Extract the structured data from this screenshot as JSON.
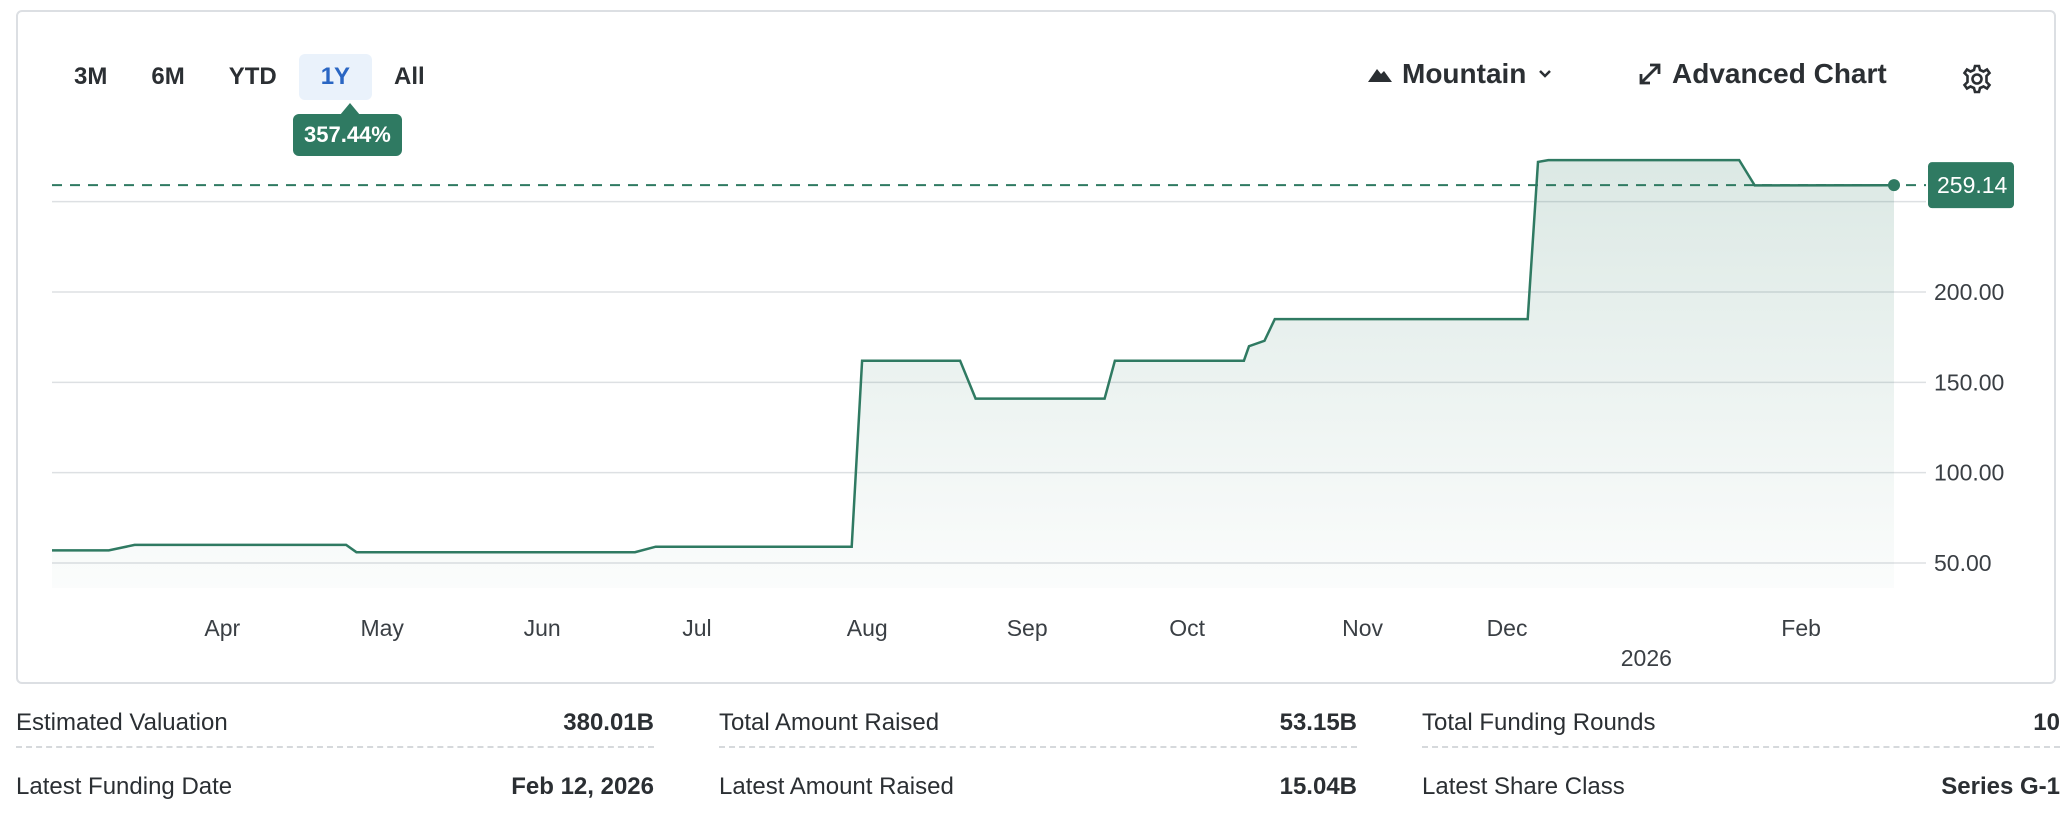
{
  "range_buttons": [
    "3M",
    "6M",
    "YTD",
    "1Y",
    "All"
  ],
  "active_range": "1Y",
  "change_tooltip": "357.44%",
  "controls": {
    "chart_style_label": "Mountain",
    "advanced_chart_label": "Advanced Chart"
  },
  "colors": {
    "line": "#2f7a62",
    "fill": "#d9ebe3",
    "active_range_text": "#2a66c3",
    "active_range_bg": "#eaf2fb"
  },
  "icons": {
    "mountain": "mountain-icon",
    "chevron": "chevron-down-icon",
    "expand": "expand-arrows-icon",
    "settings": "gear-icon"
  },
  "chart_data": {
    "type": "area",
    "x_tick_labels": [
      "Apr",
      "May",
      "Jun",
      "Jul",
      "Aug",
      "Sep",
      "Oct",
      "Nov",
      "Dec",
      "Feb"
    ],
    "year_label": "2026",
    "y_tick_labels": [
      "50.00",
      "100.00",
      "150.00",
      "200.00"
    ],
    "ylim": [
      35,
      265
    ],
    "current_value_label": "259.14",
    "current_value": 259.14,
    "grid": true,
    "x": [
      "2025-03-04",
      "2025-03-15",
      "2025-03-20",
      "2025-04-30",
      "2025-05-02",
      "2025-06-25",
      "2025-06-29",
      "2025-08-06",
      "2025-08-08",
      "2025-08-27",
      "2025-08-30",
      "2025-09-24",
      "2025-09-26",
      "2025-10-21",
      "2025-10-22",
      "2025-10-25",
      "2025-10-27",
      "2025-12-15",
      "2025-12-17",
      "2025-12-19",
      "2026-01-25",
      "2026-01-28",
      "2026-02-24"
    ],
    "values": [
      57,
      57,
      60,
      60,
      56,
      56,
      59,
      59,
      162,
      162,
      141,
      141,
      162,
      162,
      170,
      173,
      185,
      185,
      272,
      273,
      273,
      259,
      259.14
    ]
  },
  "stats": [
    {
      "label": "Estimated Valuation",
      "value": "380.01B"
    },
    {
      "label": "Total Amount Raised",
      "value": "53.15B"
    },
    {
      "label": "Total Funding Rounds",
      "value": "10"
    },
    {
      "label": "Latest Funding Date",
      "value": "Feb 12, 2026"
    },
    {
      "label": "Latest Amount Raised",
      "value": "15.04B"
    },
    {
      "label": "Latest Share Class",
      "value": "Series G-1"
    }
  ]
}
